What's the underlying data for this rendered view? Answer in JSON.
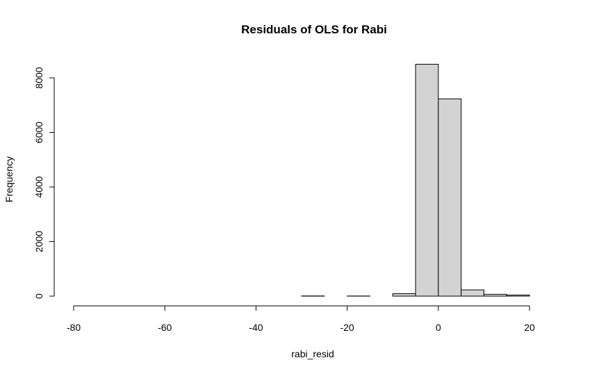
{
  "chart_data": {
    "type": "bar",
    "title": "Residuals of OLS for Rabi",
    "xlabel": "rabi_resid",
    "ylabel": "Frequency",
    "xlim": [
      -80,
      25
    ],
    "ylim": [
      0,
      8500
    ],
    "x_ticks": [
      -80,
      -60,
      -40,
      -20,
      0,
      20
    ],
    "y_ticks": [
      0,
      2000,
      4000,
      6000,
      8000
    ],
    "grid": false,
    "legend": "none",
    "bin_edges": [
      -80,
      -75,
      -70,
      -65,
      -60,
      -55,
      -50,
      -45,
      -40,
      -35,
      -30,
      -25,
      -20,
      -15,
      -10,
      -5,
      0,
      5,
      10,
      15,
      20
    ],
    "values": [
      1,
      0,
      0,
      0,
      0,
      0,
      0,
      0,
      0,
      0,
      8,
      0,
      5,
      0,
      90,
      8500,
      7230,
      230,
      70,
      40
    ],
    "bar_color": "#d3d3d3",
    "edge_color": "#000000"
  }
}
